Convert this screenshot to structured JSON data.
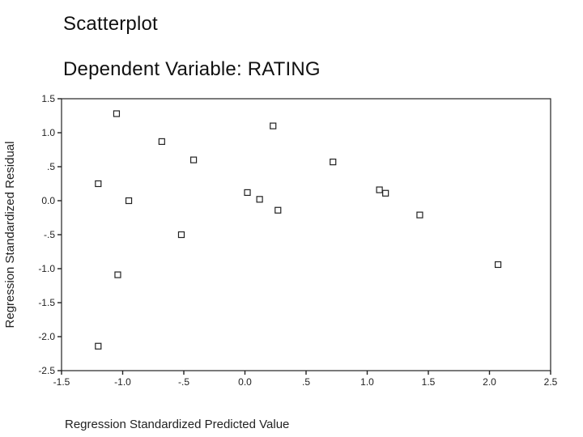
{
  "chart_data": {
    "type": "scatter",
    "title": "Scatterplot",
    "subtitle": "Dependent Variable: RATING",
    "xlabel": "Regression Standardized Predicted Value",
    "ylabel": "Regression Standardized Residual",
    "xlim": [
      -1.5,
      2.5
    ],
    "ylim": [
      -2.5,
      1.5
    ],
    "x_ticks": [
      "-1.5",
      "-1.0",
      "-.5",
      "0.0",
      ".5",
      "1.0",
      "1.5",
      "2.0",
      "2.5"
    ],
    "y_ticks": [
      "1.5",
      "1.0",
      ".5",
      "0.0",
      "-.5",
      "-1.0",
      "-1.5",
      "-2.0",
      "-2.5"
    ],
    "grid": false,
    "marker": "hollow-square",
    "points": [
      {
        "x": -1.05,
        "y": 1.28
      },
      {
        "x": -1.2,
        "y": 0.25
      },
      {
        "x": -0.95,
        "y": 0.0
      },
      {
        "x": -0.68,
        "y": 0.87
      },
      {
        "x": -0.42,
        "y": 0.6
      },
      {
        "x": -0.52,
        "y": -0.5
      },
      {
        "x": -1.04,
        "y": -1.09
      },
      {
        "x": -1.2,
        "y": -2.14
      },
      {
        "x": 0.02,
        "y": 0.12
      },
      {
        "x": 0.12,
        "y": 0.02
      },
      {
        "x": 0.23,
        "y": 1.1
      },
      {
        "x": 0.27,
        "y": -0.14
      },
      {
        "x": 0.72,
        "y": 0.57
      },
      {
        "x": 1.1,
        "y": 0.16
      },
      {
        "x": 1.15,
        "y": 0.11
      },
      {
        "x": 1.43,
        "y": -0.21
      },
      {
        "x": 2.07,
        "y": -0.94
      }
    ]
  }
}
